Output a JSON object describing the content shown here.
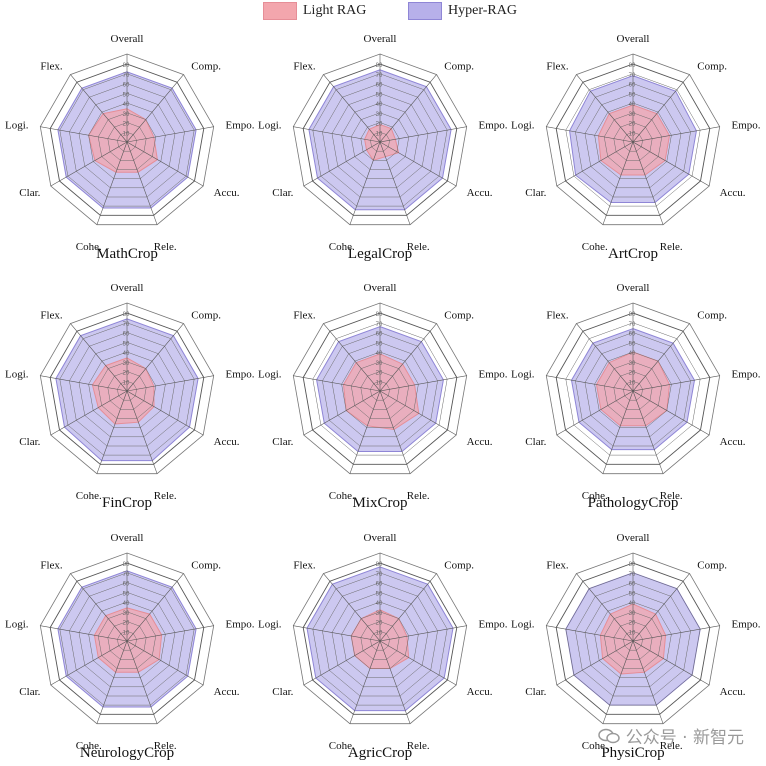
{
  "legend": [
    {
      "label": "Light RAG",
      "fill": "#f3a6ad",
      "stroke": "#e68e97"
    },
    {
      "label": "Hyper-RAG",
      "fill": "#b7b0ea",
      "stroke": "#8f86d6"
    }
  ],
  "watermark": "公众号 · 新智元",
  "chart_data": [
    {
      "type": "radar",
      "title": "MathCrop",
      "axes": [
        "Overall",
        "Comp.",
        "Empo.",
        "Accu.",
        "Rele.",
        "Cohe.",
        "Clar.",
        "Logi.",
        "Flex."
      ],
      "ticks": [
        10,
        20,
        30,
        40,
        50,
        60,
        70,
        80
      ],
      "range": [
        0,
        80
      ],
      "series": [
        {
          "name": "Light RAG",
          "values": [
            34,
            30,
            28,
            36,
            33,
            33,
            38,
            40,
            38
          ]
        },
        {
          "name": "Hyper-RAG",
          "values": [
            72,
            72,
            72,
            72,
            72,
            72,
            72,
            72,
            72
          ]
        }
      ]
    },
    {
      "type": "radar",
      "title": "LegalCrop",
      "axes": [
        "Overall",
        "Comp.",
        "Empo.",
        "Accu.",
        "Rele.",
        "Cohe.",
        "Clar.",
        "Logi.",
        "Flex."
      ],
      "ticks": [
        10,
        20,
        30,
        40,
        50,
        60,
        70,
        80
      ],
      "range": [
        0,
        80
      ],
      "series": [
        {
          "name": "Light RAG",
          "values": [
            18,
            18,
            16,
            22,
            16,
            20,
            16,
            16,
            17
          ]
        },
        {
          "name": "Hyper-RAG",
          "values": [
            74,
            74,
            74,
            74,
            74,
            74,
            74,
            74,
            74
          ]
        }
      ]
    },
    {
      "type": "radar",
      "title": "ArtCrop",
      "axes": [
        "Overall",
        "Comp.",
        "Empo.",
        "Accu.",
        "Rele.",
        "Cohe.",
        "Clar.",
        "Logi.",
        "Flex."
      ],
      "ticks": [
        10,
        20,
        30,
        40,
        50,
        60,
        70,
        80
      ],
      "range": [
        0,
        80
      ],
      "series": [
        {
          "name": "Light RAG",
          "values": [
            38,
            38,
            38,
            38,
            36,
            36,
            38,
            36,
            38
          ]
        },
        {
          "name": "Hyper-RAG",
          "values": [
            68,
            68,
            66,
            66,
            66,
            66,
            68,
            66,
            68
          ]
        }
      ]
    },
    {
      "type": "radar",
      "title": "FinCrop",
      "axes": [
        "Overall",
        "Comp.",
        "Empo.",
        "Accu.",
        "Rele.",
        "Cohe.",
        "Clar.",
        "Logi.",
        "Flex."
      ],
      "ticks": [
        10,
        20,
        30,
        40,
        50,
        60,
        70,
        80
      ],
      "range": [
        0,
        80
      ],
      "series": [
        {
          "name": "Light RAG",
          "values": [
            34,
            30,
            28,
            32,
            34,
            36,
            34,
            36,
            34
          ]
        },
        {
          "name": "Hyper-RAG",
          "values": [
            74,
            74,
            74,
            74,
            76,
            76,
            74,
            74,
            74
          ]
        }
      ]
    },
    {
      "type": "radar",
      "title": "MixCrop",
      "axes": [
        "Overall",
        "Comp.",
        "Empo.",
        "Accu.",
        "Rele.",
        "Cohe.",
        "Clar.",
        "Logi.",
        "Flex."
      ],
      "ticks": [
        10,
        20,
        30,
        40,
        50,
        60,
        70,
        80
      ],
      "range": [
        0,
        80
      ],
      "series": [
        {
          "name": "Light RAG",
          "values": [
            38,
            36,
            36,
            46,
            42,
            38,
            40,
            38,
            38
          ]
        },
        {
          "name": "Hyper-RAG",
          "values": [
            66,
            66,
            66,
            66,
            66,
            66,
            66,
            66,
            66
          ]
        }
      ]
    },
    {
      "type": "radar",
      "title": "PathologyCrop",
      "axes": [
        "Overall",
        "Comp.",
        "Empo.",
        "Accu.",
        "Rele.",
        "Cohe.",
        "Clar.",
        "Logi.",
        "Flex."
      ],
      "ticks": [
        10,
        20,
        30,
        40,
        50,
        60,
        70,
        80
      ],
      "range": [
        0,
        80
      ],
      "series": [
        {
          "name": "Light RAG",
          "values": [
            40,
            40,
            38,
            40,
            38,
            38,
            38,
            38,
            38
          ]
        },
        {
          "name": "Hyper-RAG",
          "values": [
            64,
            64,
            64,
            64,
            64,
            64,
            64,
            64,
            64
          ]
        }
      ]
    },
    {
      "type": "radar",
      "title": "NeurologyCrop",
      "axes": [
        "Overall",
        "Comp.",
        "Empo.",
        "Accu.",
        "Rele.",
        "Cohe.",
        "Clar.",
        "Logi.",
        "Flex."
      ],
      "ticks": [
        10,
        20,
        30,
        40,
        50,
        60,
        70,
        80
      ],
      "range": [
        0,
        80
      ],
      "series": [
        {
          "name": "Light RAG",
          "values": [
            34,
            36,
            36,
            38,
            34,
            34,
            34,
            34,
            34
          ]
        },
        {
          "name": "Hyper-RAG",
          "values": [
            72,
            72,
            72,
            72,
            72,
            72,
            72,
            72,
            72
          ]
        }
      ]
    },
    {
      "type": "radar",
      "title": "AgricCrop",
      "axes": [
        "Overall",
        "Comp.",
        "Empo.",
        "Accu.",
        "Rele.",
        "Cohe.",
        "Clar.",
        "Logi.",
        "Flex."
      ],
      "ticks": [
        10,
        20,
        30,
        40,
        50,
        60,
        70,
        80
      ],
      "range": [
        0,
        80
      ],
      "series": [
        {
          "name": "Light RAG",
          "values": [
            32,
            30,
            28,
            34,
            30,
            30,
            30,
            30,
            30
          ]
        },
        {
          "name": "Hyper-RAG",
          "values": [
            76,
            76,
            76,
            76,
            76,
            76,
            76,
            76,
            76
          ]
        }
      ]
    },
    {
      "type": "radar",
      "title": "PhysiCrop",
      "axes": [
        "Overall",
        "Comp.",
        "Empo.",
        "Accu.",
        "Rele.",
        "Cohe.",
        "Clar.",
        "Logi.",
        "Flex."
      ],
      "ticks": [
        10,
        20,
        30,
        40,
        50,
        60,
        70,
        80
      ],
      "range": [
        0,
        80
      ],
      "series": [
        {
          "name": "Light RAG",
          "values": [
            38,
            36,
            34,
            36,
            34,
            36,
            36,
            34,
            36
          ]
        },
        {
          "name": "Hyper-RAG",
          "values": [
            70,
            70,
            70,
            70,
            70,
            70,
            70,
            70,
            70
          ]
        }
      ]
    }
  ]
}
